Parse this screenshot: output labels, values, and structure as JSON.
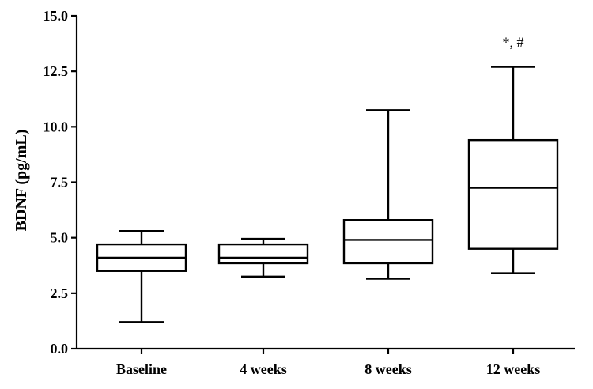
{
  "chart_data": {
    "type": "boxplot",
    "title": "",
    "xlabel": "",
    "ylabel": "BDNF (pg/mL)",
    "ylim": [
      0,
      15
    ],
    "yticks": [
      "0.0",
      "2.5",
      "5.0",
      "7.5",
      "10.0",
      "12.5",
      "15.0"
    ],
    "grid": false,
    "categories": [
      "Baseline",
      "4 weeks",
      "8 weeks",
      "12 weeks"
    ],
    "boxes": [
      {
        "category": "Baseline",
        "min": 1.2,
        "q1": 3.5,
        "median": 4.1,
        "q3": 4.7,
        "max": 5.3
      },
      {
        "category": "4 weeks",
        "min": 3.25,
        "q1": 3.85,
        "median": 4.1,
        "q3": 4.7,
        "max": 4.95
      },
      {
        "category": "8 weeks",
        "min": 3.15,
        "q1": 3.85,
        "median": 4.9,
        "q3": 5.8,
        "max": 10.75
      },
      {
        "category": "12 weeks",
        "min": 3.4,
        "q1": 4.5,
        "median": 7.25,
        "q3": 9.4,
        "max": 12.7
      }
    ],
    "annotations": [
      {
        "category": "12 weeks",
        "text": "*, #"
      }
    ]
  }
}
